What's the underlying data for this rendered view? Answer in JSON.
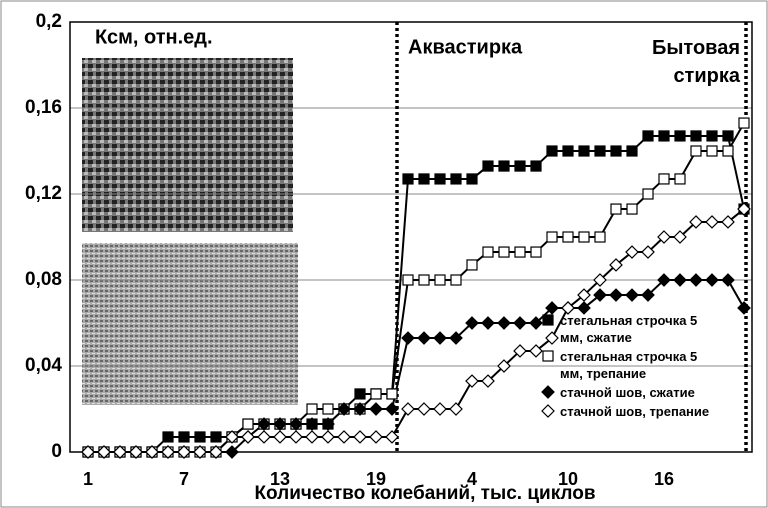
{
  "chart_data": {
    "type": "line",
    "annotations": [
      "Ксм, отн.ед.",
      "Аквастирка",
      "Бытовая стирка"
    ],
    "x_label": "Количество колебаний, тыс. циклов",
    "categories": [
      "1",
      null,
      null,
      null,
      null,
      null,
      "7",
      null,
      null,
      null,
      null,
      null,
      "13",
      null,
      null,
      null,
      null,
      null,
      "19",
      null,
      null,
      null,
      null,
      null,
      "4",
      null,
      null,
      null,
      null,
      null,
      "10",
      null,
      null,
      null,
      null,
      null,
      "16",
      null,
      null,
      null,
      null,
      null
    ],
    "series": [
      {
        "name": "стегальная строчка 5 мм, сжатие",
        "color": "#000000",
        "marker": "square",
        "marker_fill": "#000000",
        "values": [
          0,
          0,
          0,
          0,
          0,
          0.007,
          0.007,
          0.007,
          0.007,
          0.007,
          0.013,
          0.013,
          0.013,
          0.013,
          0.013,
          0.013,
          0.02,
          0.027,
          0.027,
          0.027,
          0.127,
          0.127,
          0.127,
          0.127,
          0.127,
          0.133,
          0.133,
          0.133,
          0.133,
          0.14,
          0.14,
          0.14,
          0.14,
          0.14,
          0.14,
          0.147,
          0.147,
          0.147,
          0.147,
          0.147,
          0.147,
          0.113
        ]
      },
      {
        "name": "стегальная строчка 5 мм, трепание",
        "color": "#000000",
        "marker": "square",
        "marker_fill": "#ffffff",
        "values": [
          0,
          0,
          0,
          0,
          0,
          0,
          0,
          0,
          0,
          0.007,
          0.013,
          0.013,
          0.013,
          0.013,
          0.02,
          0.02,
          0.02,
          0.02,
          0.027,
          0.027,
          0.08,
          0.08,
          0.08,
          0.08,
          0.087,
          0.093,
          0.093,
          0.093,
          0.093,
          0.1,
          0.1,
          0.1,
          0.1,
          0.113,
          0.113,
          0.12,
          0.127,
          0.127,
          0.14,
          0.14,
          0.14,
          0.153
        ]
      },
      {
        "name": "стачной шов, сжатие",
        "color": "#000000",
        "marker": "diamond",
        "marker_fill": "#000000",
        "values": [
          0,
          0,
          0,
          0,
          0,
          0,
          0,
          0,
          0,
          0,
          0.007,
          0.013,
          0.013,
          0.013,
          0.013,
          0.013,
          0.02,
          0.02,
          0.02,
          0.02,
          0.053,
          0.053,
          0.053,
          0.053,
          0.06,
          0.06,
          0.06,
          0.06,
          0.06,
          0.067,
          0.067,
          0.067,
          0.073,
          0.073,
          0.073,
          0.073,
          0.08,
          0.08,
          0.08,
          0.08,
          0.08,
          0.067
        ]
      },
      {
        "name": "стачной шов, трепание",
        "color": "#000000",
        "marker": "diamond",
        "marker_fill": "#ffffff",
        "values": [
          0,
          0,
          0,
          0,
          0,
          0,
          0,
          0,
          0,
          0.007,
          0.007,
          0.007,
          0.007,
          0.007,
          0.007,
          0.007,
          0.007,
          0.007,
          0.007,
          0.007,
          0.02,
          0.02,
          0.02,
          0.02,
          0.033,
          0.033,
          0.04,
          0.047,
          0.047,
          0.053,
          0.067,
          0.073,
          0.08,
          0.087,
          0.093,
          0.093,
          0.1,
          0.1,
          0.107,
          0.107,
          0.107,
          0.113
        ]
      }
    ],
    "ylim": [
      0,
      0.2
    ],
    "yticks": [
      0,
      {
        "value": 0.04,
        "label": "0,04"
      },
      {
        "value": 0.08,
        "label": "0,08"
      },
      {
        "value": 0.12,
        "label": "0,12"
      },
      {
        "value": 0.16,
        "label": "0,16"
      },
      {
        "value": 0.2,
        "label": "0,2"
      }
    ],
    "grid": true
  }
}
